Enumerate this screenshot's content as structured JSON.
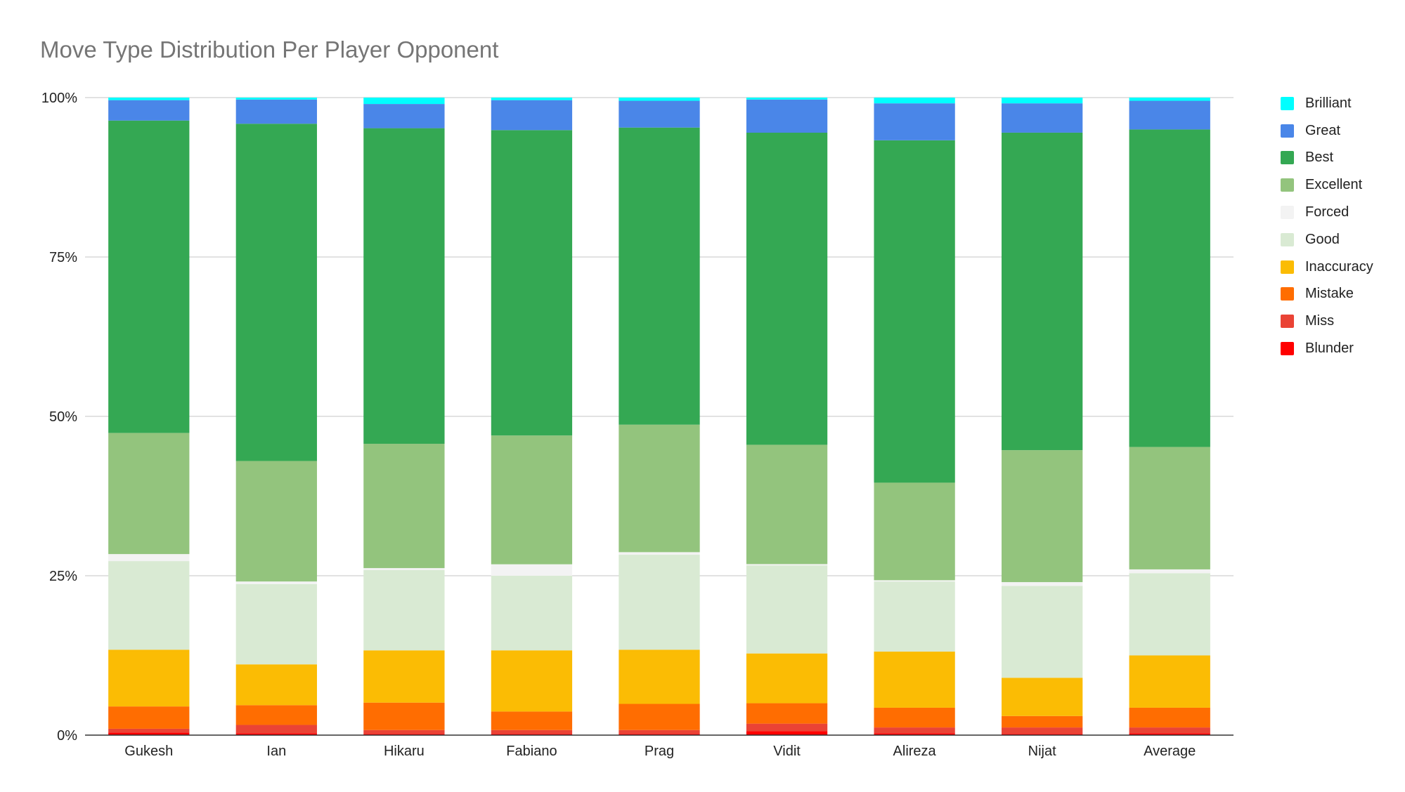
{
  "chart_data": {
    "type": "bar",
    "stacked": true,
    "normalized": true,
    "title": "Move Type Distribution Per Player Opponent",
    "xlabel": "",
    "ylabel": "",
    "ylim": [
      0,
      100
    ],
    "yticks": [
      "0%",
      "25%",
      "50%",
      "75%",
      "100%"
    ],
    "grid": true,
    "legend_position": "right",
    "categories": [
      "Gukesh",
      "Ian",
      "Hikaru",
      "Fabiano",
      "Prag",
      "Vidit",
      "Alireza",
      "Nijat",
      "Average"
    ],
    "series": [
      {
        "name": "Blunder",
        "color": "#ff0000",
        "values": [
          0.4,
          0.3,
          0.2,
          0.2,
          0.2,
          0.6,
          0.3,
          0.2,
          0.3
        ]
      },
      {
        "name": "Miss",
        "color": "#ea4335",
        "values": [
          0.6,
          1.3,
          0.6,
          0.6,
          0.6,
          1.2,
          0.9,
          1.0,
          0.9
        ]
      },
      {
        "name": "Mistake",
        "color": "#ff6d01",
        "values": [
          3.5,
          3.1,
          4.3,
          2.9,
          4.1,
          3.2,
          3.1,
          1.8,
          3.1
        ]
      },
      {
        "name": "Inaccuracy",
        "color": "#fbbc04",
        "values": [
          8.9,
          6.4,
          8.2,
          9.6,
          8.5,
          7.8,
          8.8,
          6.0,
          8.2
        ]
      },
      {
        "name": "Good",
        "color": "#d9ead3",
        "values": [
          13.9,
          12.6,
          12.6,
          11.7,
          14.9,
          13.8,
          11.0,
          14.4,
          12.9
        ]
      },
      {
        "name": "Forced",
        "color": "#f3f3f3",
        "values": [
          1.1,
          0.4,
          0.3,
          1.8,
          0.4,
          0.2,
          0.2,
          0.6,
          0.6
        ]
      },
      {
        "name": "Excellent",
        "color": "#93c47d",
        "values": [
          19.0,
          18.9,
          19.5,
          20.2,
          20.0,
          18.7,
          15.3,
          20.7,
          19.2
        ]
      },
      {
        "name": "Best",
        "color": "#34a853",
        "values": [
          49.0,
          52.9,
          49.5,
          47.9,
          46.6,
          48.9,
          53.7,
          49.8,
          49.8
        ]
      },
      {
        "name": "Great",
        "color": "#4a86e8",
        "values": [
          3.2,
          3.8,
          3.8,
          4.7,
          4.2,
          5.2,
          5.8,
          4.6,
          4.5
        ]
      },
      {
        "name": "Brilliant",
        "color": "#00ffff",
        "values": [
          0.4,
          0.3,
          1.0,
          0.4,
          0.5,
          0.3,
          0.9,
          0.9,
          0.5
        ]
      }
    ]
  }
}
